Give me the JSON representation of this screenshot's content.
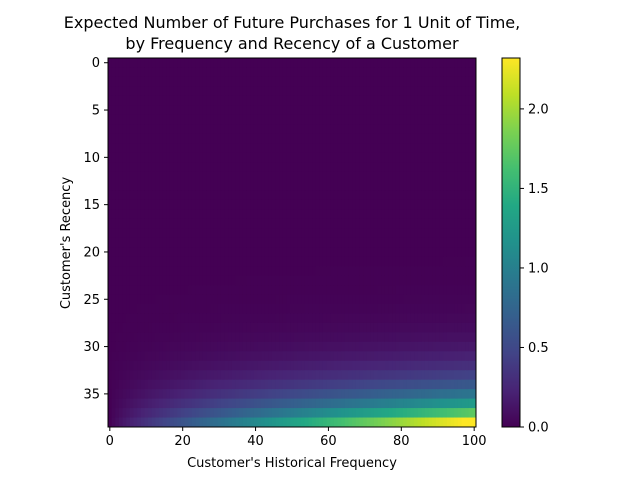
{
  "chart_data": {
    "type": "heatmap",
    "title_line1": "Expected Number of Future Purchases for 1 Unit of Time,",
    "title_line2": "by Frequency and Recency of a Customer",
    "xlabel": "Customer's Historical Frequency",
    "ylabel": "Customer's Recency",
    "x_range": [
      0,
      100
    ],
    "y_range": [
      0,
      38
    ],
    "y_inverted": true,
    "x_ticks": [
      0,
      20,
      40,
      60,
      80,
      100
    ],
    "y_ticks": [
      0,
      5,
      10,
      15,
      20,
      25,
      30,
      35
    ],
    "grid": false,
    "colormap": "viridis",
    "colorbar": {
      "range": [
        0,
        2.32
      ],
      "ticks": [
        "0.0",
        "0.5",
        "1.0",
        "1.5",
        "2.0"
      ],
      "tick_values": [
        0,
        0.5,
        1.0,
        1.5,
        2.0
      ]
    },
    "value_model": {
      "description": "expected purchases grow with frequency and recency",
      "max_value": 2.32
    }
  }
}
